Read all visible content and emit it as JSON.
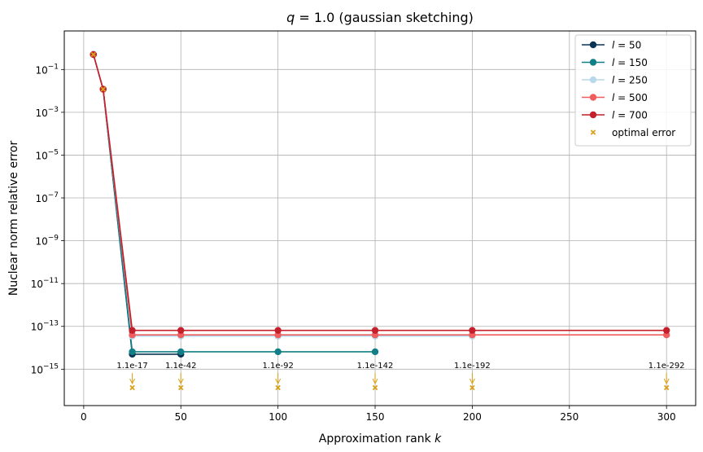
{
  "chart_data": {
    "type": "line",
    "title_prefix": "q",
    "title_value": " = 1.0 (gaussian sketching)",
    "xlabel_prefix": "Approximation rank ",
    "xlabel_var": "k",
    "ylabel": "Nuclear norm relative error",
    "xlim": [
      -10,
      315
    ],
    "ylim_log10": [
      -16.7,
      0.8
    ],
    "yscale": "log",
    "grid": true,
    "legend_position": "top-right",
    "x_ticks": [
      0,
      50,
      100,
      150,
      200,
      250,
      300
    ],
    "x_tick_labels": [
      "0",
      "50",
      "100",
      "150",
      "200",
      "250",
      "300"
    ],
    "y_tick_exponents": [
      -15,
      -13,
      -11,
      -9,
      -7,
      -5,
      -3,
      -1
    ],
    "y_tick_labels": [
      "10",
      "10",
      "10",
      "10",
      "10",
      "10",
      "10",
      "10"
    ],
    "y_tick_superscripts": [
      "−15",
      "−13",
      "−11",
      "−9",
      "−7",
      "−5",
      "−3",
      "−1"
    ],
    "series": [
      {
        "name_var": "l",
        "name_value": " = 50",
        "color": "#0b3354",
        "x": [
          5,
          10,
          25,
          50
        ],
        "y": [
          0.5,
          0.012,
          5e-15,
          5e-15
        ]
      },
      {
        "name_var": "l",
        "name_value": " = 150",
        "color": "#107f87",
        "x": [
          5,
          10,
          25,
          50,
          100,
          150
        ],
        "y": [
          0.5,
          0.012,
          6.5e-15,
          6.5e-15,
          6.5e-15,
          6.5e-15
        ]
      },
      {
        "name_var": "l",
        "name_value": " = 250",
        "color": "#b8d8ec",
        "x": [
          5,
          10,
          25,
          50,
          100,
          150,
          200
        ],
        "y": [
          0.5,
          0.012,
          3.5e-14,
          3.5e-14,
          3.5e-14,
          3.5e-14,
          3.5e-14
        ]
      },
      {
        "name_var": "l",
        "name_value": " = 500",
        "color": "#ef5d5d",
        "x": [
          5,
          10,
          25,
          50,
          100,
          150,
          200,
          300
        ],
        "y": [
          0.5,
          0.012,
          4e-14,
          4e-14,
          4e-14,
          4e-14,
          4e-14,
          4e-14
        ]
      },
      {
        "name_var": "l",
        "name_value": " = 700",
        "color": "#c41f2a",
        "x": [
          5,
          10,
          25,
          50,
          100,
          150,
          200,
          300
        ],
        "y": [
          0.5,
          0.012,
          6.5e-14,
          6.5e-14,
          6.5e-14,
          6.5e-14,
          6.5e-14,
          6.5e-14
        ]
      }
    ],
    "optimal_error": {
      "name": "optimal error",
      "color": "#d9a21b",
      "x": [
        5,
        10,
        25,
        50,
        100,
        150,
        200,
        300
      ],
      "y": [
        0.5,
        0.012,
        1.1e-17,
        1.1e-42,
        1.1e-92,
        1.1e-142,
        1.1e-192,
        1.1e-292
      ]
    },
    "annotations": [
      {
        "x": 25,
        "label": "1.1e-17"
      },
      {
        "x": 50,
        "label": "1.1e-42"
      },
      {
        "x": 100,
        "label": "1.1e-92"
      },
      {
        "x": 150,
        "label": "1.1e-142"
      },
      {
        "x": 200,
        "label": "1.1e-192"
      },
      {
        "x": 300,
        "label": "1.1e-292"
      }
    ]
  }
}
